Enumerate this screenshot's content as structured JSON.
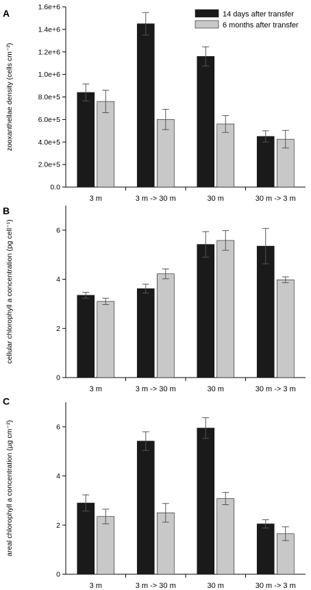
{
  "colors": {
    "series_14d": "#1a1a1a",
    "series_6m": "#c8c8c8",
    "axis": "#000000",
    "error_bar": "#555555"
  },
  "chart_data": [
    {
      "type": "bar",
      "panel_label": "A",
      "ylabel": "zooxanthellae density (cells cm⁻²)",
      "categories": [
        "3 m",
        "3 m -> 30 m",
        "30 m",
        "30 m -> 3 m"
      ],
      "series": [
        {
          "name": "14 days after transfer",
          "values": [
            840000,
            1450000,
            1160000,
            450000
          ],
          "errors": [
            75000,
            100000,
            85000,
            50000
          ]
        },
        {
          "name": "6 months after transfer",
          "values": [
            760000,
            600000,
            560000,
            425000
          ],
          "errors": [
            100000,
            90000,
            75000,
            78000
          ]
        }
      ],
      "ylim": [
        0,
        1600000
      ],
      "yticks": [
        0,
        200000,
        400000,
        600000,
        800000,
        1000000,
        1200000,
        1400000,
        1600000
      ],
      "ytick_labels": [
        "0.0",
        "2.0e+5",
        "4.0e+5",
        "6.0e+5",
        "8.0e+5",
        "1.0e+6",
        "1.2e+6",
        "1.4e+6",
        "1.6e+6"
      ],
      "legend": "top-right"
    },
    {
      "type": "bar",
      "panel_label": "B",
      "ylabel": "cellular chlorophyll a concentration (pg cell⁻¹)",
      "categories": [
        "3 m",
        "3 m -> 30 m",
        "30 m",
        "30 m -> 3 m"
      ],
      "series": [
        {
          "name": "14 days after transfer",
          "values": [
            3.35,
            3.62,
            5.42,
            5.35
          ],
          "errors": [
            0.12,
            0.18,
            0.52,
            0.72
          ]
        },
        {
          "name": "6 months after transfer",
          "values": [
            3.1,
            4.22,
            5.58,
            3.98
          ],
          "errors": [
            0.13,
            0.2,
            0.4,
            0.12
          ]
        }
      ],
      "ylim": [
        0,
        7
      ],
      "yticks": [
        0,
        2,
        4,
        6
      ],
      "ytick_labels": [
        "0",
        "2",
        "4",
        "6"
      ]
    },
    {
      "type": "bar",
      "panel_label": "C",
      "ylabel": "areal chlorophyll a concentration (µg  cm⁻²)",
      "categories": [
        "3 m",
        "3 m -> 30 m",
        "30 m",
        "30 m -> 3 m"
      ],
      "series": [
        {
          "name": "14 days after transfer",
          "values": [
            2.9,
            5.42,
            5.95,
            2.05
          ],
          "errors": [
            0.33,
            0.38,
            0.42,
            0.17
          ]
        },
        {
          "name": "6 months after transfer",
          "values": [
            2.35,
            2.5,
            3.08,
            1.65
          ],
          "errors": [
            0.3,
            0.38,
            0.25,
            0.28
          ]
        }
      ],
      "ylim": [
        0,
        7
      ],
      "yticks": [
        0,
        2,
        4,
        6
      ],
      "ytick_labels": [
        "0",
        "2",
        "4",
        "6"
      ]
    }
  ]
}
